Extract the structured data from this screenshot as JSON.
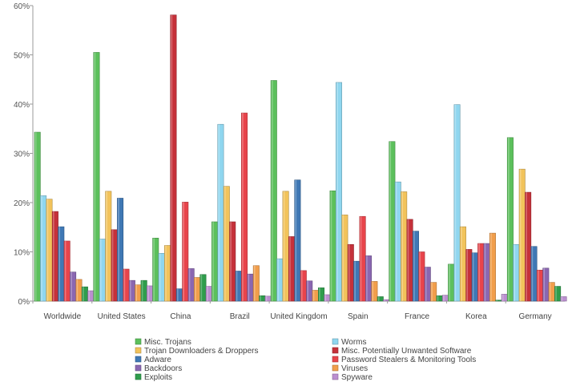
{
  "chart_data": {
    "type": "bar",
    "title": "",
    "xlabel": "",
    "ylabel": "",
    "ylim": [
      0,
      60
    ],
    "yticks": [
      "0%",
      "10%",
      "20%",
      "30%",
      "40%",
      "50%",
      "60%"
    ],
    "grid": false,
    "legend_position": "bottom",
    "categories": [
      "Worldwide",
      "United States",
      "China",
      "Brazil",
      "United Kingdom",
      "Spain",
      "France",
      "Korea",
      "Germany"
    ],
    "series": [
      {
        "name": "Misc. Trojans",
        "color": "#5cc05c",
        "values": [
          34.3,
          50.5,
          12.8,
          16.1,
          44.8,
          22.4,
          32.4,
          7.5,
          33.2
        ]
      },
      {
        "name": "Worms",
        "color": "#8fd6ef",
        "values": [
          21.4,
          12.6,
          9.7,
          35.9,
          8.6,
          44.4,
          24.2,
          39.9,
          11.5
        ]
      },
      {
        "name": "Trojan Downloaders & Droppers",
        "color": "#f2c35b",
        "values": [
          20.7,
          22.3,
          11.3,
          23.3,
          22.3,
          17.5,
          22.2,
          15.1,
          26.8
        ]
      },
      {
        "name": "Misc. Potentially Unwanted Software",
        "color": "#c5313a",
        "values": [
          18.2,
          14.5,
          58.1,
          16.1,
          13.1,
          11.5,
          16.6,
          10.5,
          22.1
        ]
      },
      {
        "name": "Adware",
        "color": "#3f78b5",
        "values": [
          15.1,
          20.9,
          2.5,
          6.1,
          24.6,
          8.1,
          14.2,
          9.8,
          11.1
        ]
      },
      {
        "name": "Password Stealers & Monitoring Tools",
        "color": "#e8444b",
        "values": [
          12.2,
          6.5,
          20.1,
          38.2,
          6.2,
          17.2,
          10.0,
          11.7,
          6.3
        ]
      },
      {
        "name": "Backdoors",
        "color": "#8a67b1",
        "values": [
          5.9,
          4.2,
          6.6,
          5.5,
          4.1,
          9.2,
          6.9,
          11.7,
          6.7
        ]
      },
      {
        "name": "Viruses",
        "color": "#f19e4b",
        "values": [
          4.4,
          3.3,
          4.8,
          7.2,
          2.2,
          4.0,
          3.8,
          13.8,
          3.8
        ]
      },
      {
        "name": "Exploits",
        "color": "#2f9d4c",
        "values": [
          2.9,
          4.2,
          5.4,
          1.1,
          2.7,
          0.9,
          1.1,
          0.2,
          3.0
        ]
      },
      {
        "name": "Spyware",
        "color": "#bb8fd0",
        "values": [
          2.1,
          3.1,
          3.0,
          1.0,
          1.3,
          0.3,
          1.2,
          1.4,
          0.9
        ]
      }
    ]
  }
}
